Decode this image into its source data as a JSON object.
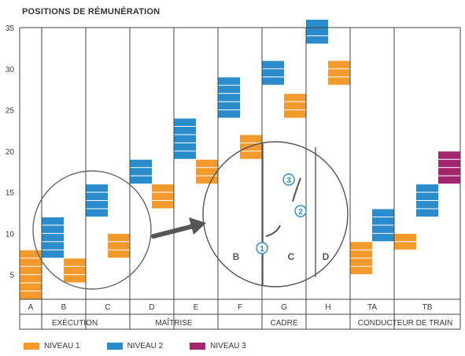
{
  "title": "POSITIONS DE RÉMUNÉRATION",
  "colors": {
    "niveau1": "#F39A2C",
    "niveau2": "#2A8CCB",
    "niveau3": "#A3276E",
    "arrow": "#555555",
    "grid": "#444444"
  },
  "chart_data": {
    "type": "bar",
    "title": "POSITIONS DE RÉMUNÉRATION",
    "ylim": [
      2,
      35
    ],
    "yticks": [
      "5",
      "10",
      "15",
      "20",
      "25",
      "30",
      "35"
    ],
    "categories": [
      "A",
      "B",
      "C",
      "D",
      "E",
      "F",
      "G",
      "H",
      "TA",
      "TB"
    ],
    "groups": [
      {
        "label": "EXÉCUTION",
        "categories": [
          "A",
          "B",
          "C"
        ]
      },
      {
        "label": "MAÎTRISE",
        "categories": [
          "D",
          "E"
        ]
      },
      {
        "label": "CADRE",
        "categories": [
          "F",
          "G",
          "H"
        ]
      },
      {
        "label": "CONDUCTEUR DE TRAIN",
        "categories": [
          "TA",
          "TB"
        ]
      }
    ],
    "series": [
      {
        "name": "NIVEAU 1",
        "ranges": [
          [
            2,
            8
          ],
          [
            4,
            7
          ],
          [
            7,
            10
          ],
          [
            13,
            16
          ],
          [
            16,
            19
          ],
          [
            19,
            22
          ],
          [
            24,
            27
          ],
          [
            28,
            31
          ],
          [
            5,
            9
          ],
          [
            8,
            10
          ]
        ]
      },
      {
        "name": "NIVEAU 2",
        "ranges": [
          null,
          [
            7,
            12
          ],
          [
            12,
            16
          ],
          [
            16,
            19
          ],
          [
            19,
            24
          ],
          [
            24,
            29
          ],
          [
            28,
            31
          ],
          [
            33,
            36
          ],
          [
            9,
            13
          ],
          [
            12,
            16
          ]
        ]
      },
      {
        "name": "NIVEAU 3",
        "ranges": [
          null,
          null,
          null,
          null,
          null,
          null,
          null,
          null,
          null,
          [
            16,
            20
          ]
        ]
      }
    ],
    "grid": true,
    "legend": "bottom-left",
    "annotations": {
      "zoom_right_labels": [
        "B",
        "C",
        "D"
      ],
      "zoom_markers": [
        "①",
        "②",
        "③"
      ]
    }
  }
}
